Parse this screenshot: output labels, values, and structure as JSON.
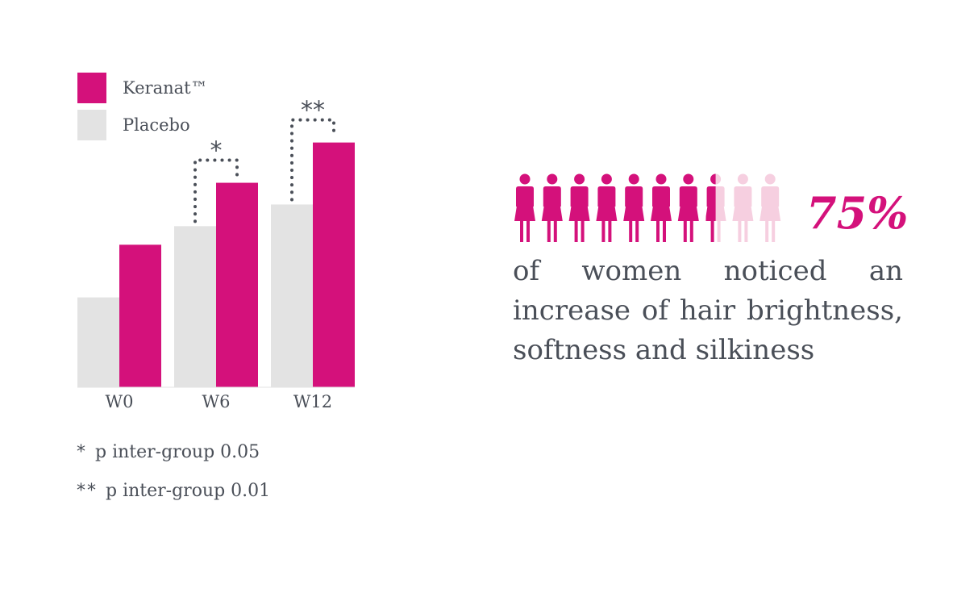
{
  "chart_data": {
    "type": "bar",
    "categories": [
      "W0",
      "W6",
      "W12"
    ],
    "series": [
      {
        "name": "Placebo",
        "values": [
          29,
          52,
          59
        ],
        "color": "#e3e3e3"
      },
      {
        "name": "Keranat™",
        "values": [
          46,
          66,
          79
        ],
        "color": "#d4117b"
      }
    ],
    "ylim": [
      0,
      100
    ],
    "grid": false,
    "legend": "top-left",
    "significance": [
      {
        "category": "W6",
        "mark": "*"
      },
      {
        "category": "W12",
        "mark": "**"
      }
    ],
    "tick_labels": [
      "W0",
      "W6",
      "W12"
    ]
  },
  "footnotes": [
    {
      "mark": "*",
      "text": "p inter-group 0.05"
    },
    {
      "mark": "**",
      "text": "p inter-group 0.01"
    }
  ],
  "stat": {
    "value": "75%",
    "percent": 75,
    "text": "of women noticed an increase of hair brightness, softness and silkiness",
    "icon": "woman-icon",
    "icon_count": 10,
    "filled_color": "#d4117b",
    "faded_color": "#f6cfe0"
  }
}
